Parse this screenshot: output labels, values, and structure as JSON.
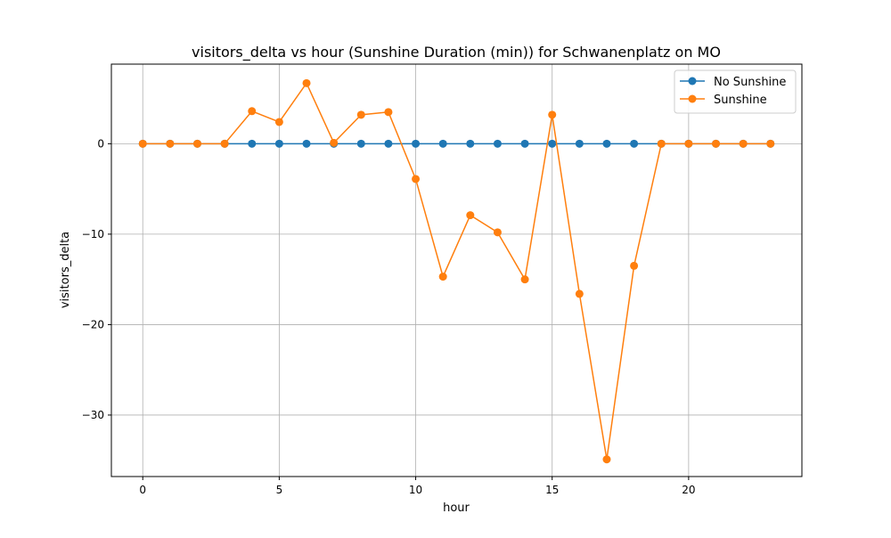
{
  "chart_data": {
    "type": "line",
    "title": "visitors_delta vs hour (Sunshine Duration (min)) for Schwanenplatz on MO",
    "xlabel": "hour",
    "ylabel": "visitors_delta",
    "xlim": [
      -1.15,
      24.15
    ],
    "ylim": [
      -36.8,
      8.8
    ],
    "xticks": [
      0,
      5,
      10,
      15,
      20
    ],
    "yticks": [
      0,
      -10,
      -20,
      -30
    ],
    "grid": true,
    "legend_position": "top-right",
    "x": [
      0,
      1,
      2,
      3,
      4,
      5,
      6,
      7,
      8,
      9,
      10,
      11,
      12,
      13,
      14,
      15,
      16,
      17,
      18,
      19,
      20,
      21,
      22,
      23
    ],
    "series": [
      {
        "name": "No Sunshine",
        "color": "#1f77b4",
        "values": [
          0,
          0,
          0,
          0,
          0,
          0,
          0,
          0,
          0,
          0,
          0,
          0,
          0,
          0,
          0,
          0,
          0,
          0,
          0,
          0,
          0,
          0,
          0,
          0
        ]
      },
      {
        "name": "Sunshine",
        "color": "#ff7f0e",
        "values": [
          0,
          0,
          0,
          0,
          3.6,
          2.4,
          6.7,
          0.1,
          3.2,
          3.5,
          -3.9,
          -14.7,
          -7.9,
          -9.8,
          -15.0,
          3.2,
          -16.6,
          -34.9,
          -13.5,
          0,
          0,
          0,
          0,
          0
        ]
      }
    ]
  }
}
